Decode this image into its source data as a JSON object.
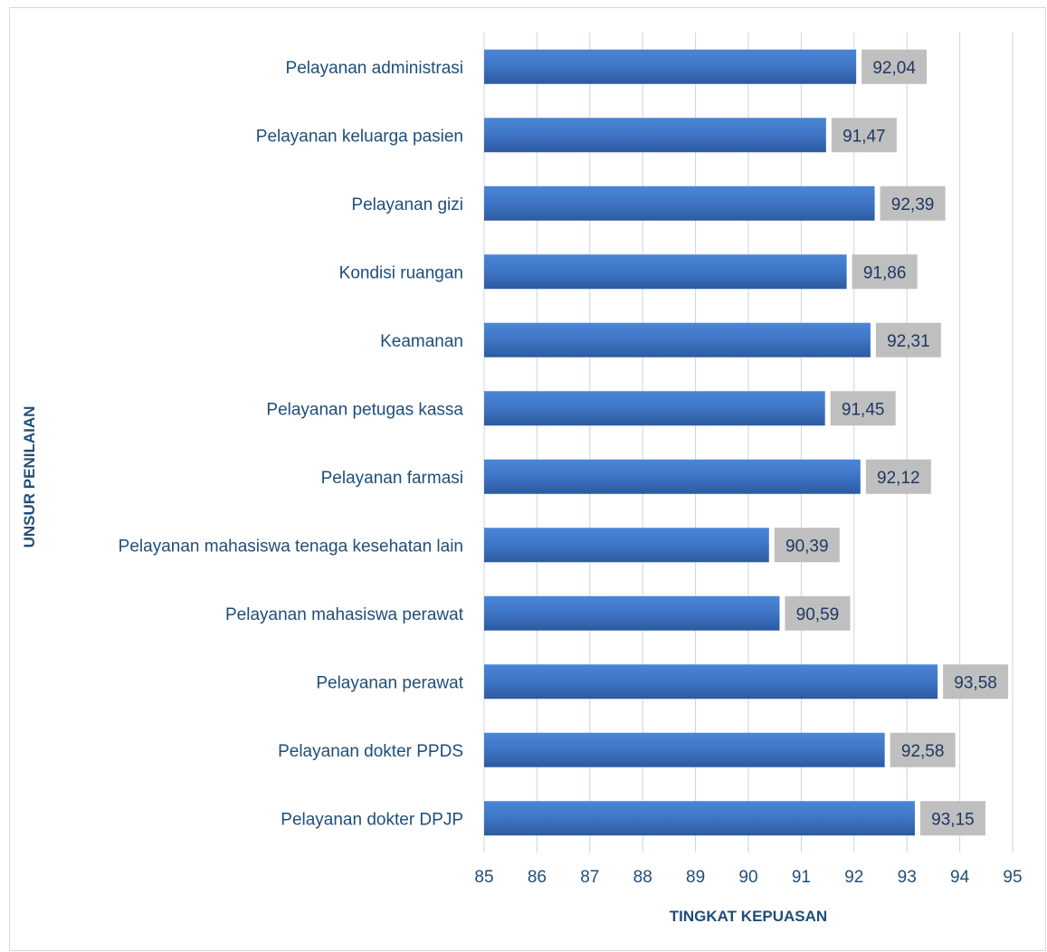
{
  "chart_data": {
    "type": "bar",
    "orientation": "horizontal",
    "title": "",
    "xlabel": "TINGKAT KEPUASAN",
    "ylabel": "UNSUR PENILAIAN",
    "xlim": [
      85,
      95
    ],
    "ticks": [
      "85",
      "86",
      "87",
      "88",
      "89",
      "90",
      "91",
      "92",
      "93",
      "94",
      "95"
    ],
    "grid": "vertical",
    "legend": "none",
    "colors": {
      "bar": "#3f75c4",
      "bar_top": "#4a86d8",
      "bar_bottom": "#2c5aa0",
      "label_bg": "#bfbfbf",
      "label_text": "#1f3864",
      "gridline": "#c5d6ea",
      "axis_text": "#1f4e79",
      "frame": "#d9d9d9"
    },
    "categories": [
      "Pelayanan administrasi",
      "Pelayanan keluarga pasien",
      "Pelayanan gizi",
      "Kondisi ruangan",
      "Keamanan",
      "Pelayanan petugas kassa",
      "Pelayanan farmasi",
      "Pelayanan mahasiswa tenaga kesehatan lain",
      "Pelayanan mahasiswa perawat",
      "Pelayanan perawat",
      "Pelayanan dokter PPDS",
      "Pelayanan dokter DPJP"
    ],
    "values": [
      92.04,
      91.47,
      92.39,
      91.86,
      92.31,
      91.45,
      92.12,
      90.39,
      90.59,
      93.58,
      92.58,
      93.15
    ],
    "value_labels": [
      "92,04",
      "91,47",
      "92,39",
      "91,86",
      "92,31",
      "91,45",
      "92,12",
      "90,39",
      "90,59",
      "93,58",
      "92,58",
      "93,15"
    ]
  }
}
